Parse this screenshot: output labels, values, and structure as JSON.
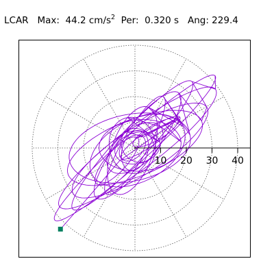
{
  "header": {
    "component": "LCAR",
    "max_label": "Max:",
    "max_value": "44.2 cm/s",
    "max_exp": "2",
    "per_label": "Per:",
    "per_value": "0.320 s",
    "ang_label": "Ang:",
    "ang_value": "229.4"
  },
  "colors": {
    "trace": "#8b00d4",
    "marker": "#008060",
    "grid": "#555555",
    "axis": "#000000"
  },
  "chart_data": {
    "type": "line",
    "title": "LCAR   Max:  44.2 cm/s2  Per:  0.320 s   Ang: 229.4",
    "xlabel": "",
    "ylabel": "",
    "coordinate_system": "polar",
    "radial_ticks": [
      10,
      20,
      30,
      40
    ],
    "radial_range": [
      0,
      48
    ],
    "grid": true,
    "angular_grid_step_deg": 30,
    "series": [
      {
        "marker_end": {
          "x": -29,
          "y": -31.6,
          "magnitude": 44.2,
          "angle_deg": 229.4
        },
        "loops": [
          {
            "a": 42,
            "b": 5.5,
            "rot": 42,
            "cx": 0,
            "cy": 0
          },
          {
            "a": 38,
            "b": 8,
            "rot": 37,
            "cx": 1,
            "cy": 0
          },
          {
            "a": 34,
            "b": 6,
            "rot": 47,
            "cx": -1,
            "cy": 1
          },
          {
            "a": 31,
            "b": 9,
            "rot": 33,
            "cx": 2,
            "cy": -1
          },
          {
            "a": 28,
            "b": 11,
            "rot": 22,
            "cx": 0,
            "cy": 0
          },
          {
            "a": 26,
            "b": 7,
            "rot": 52,
            "cx": 1,
            "cy": 1
          },
          {
            "a": 24,
            "b": 13,
            "rot": 12,
            "cx": -2,
            "cy": 0
          },
          {
            "a": 22,
            "b": 5,
            "rot": 60,
            "cx": 0,
            "cy": 1
          },
          {
            "a": 20,
            "b": 12,
            "rot": 28,
            "cx": 1,
            "cy": -1
          },
          {
            "a": 18,
            "b": 8,
            "rot": 70,
            "cx": -1,
            "cy": -1
          },
          {
            "a": 16,
            "b": 10,
            "rot": 5,
            "cx": 2,
            "cy": 1
          },
          {
            "a": 13,
            "b": 7,
            "rot": 40,
            "cx": 0,
            "cy": 0
          },
          {
            "a": 11,
            "b": 9,
            "rot": 100,
            "cx": -1,
            "cy": 1
          },
          {
            "a": 9,
            "b": 6,
            "rot": 15,
            "cx": 1,
            "cy": 0
          },
          {
            "a": 8,
            "b": 5,
            "rot": 75,
            "cx": 0,
            "cy": -1
          },
          {
            "a": 7,
            "b": 6,
            "rot": 130,
            "cx": 1,
            "cy": 1
          },
          {
            "a": 6,
            "b": 4,
            "rot": 45,
            "cx": -1,
            "cy": 0
          },
          {
            "a": 14,
            "b": 3,
            "rot": 35,
            "cx": 6,
            "cy": 4
          },
          {
            "a": 12,
            "b": 4,
            "rot": 48,
            "cx": -7,
            "cy": -5
          },
          {
            "a": 10,
            "b": 3,
            "rot": 30,
            "cx": 8,
            "cy": 6
          }
        ]
      }
    ]
  }
}
